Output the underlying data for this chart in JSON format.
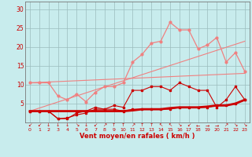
{
  "x": [
    0,
    1,
    2,
    3,
    4,
    5,
    6,
    7,
    8,
    9,
    10,
    11,
    12,
    13,
    14,
    15,
    16,
    17,
    18,
    19,
    20,
    21,
    22,
    23
  ],
  "line_thick_red": [
    3.0,
    3.0,
    3.0,
    3.0,
    3.0,
    3.0,
    3.0,
    3.0,
    3.0,
    3.0,
    3.0,
    3.2,
    3.5,
    3.5,
    3.5,
    3.8,
    4.0,
    4.0,
    4.0,
    4.2,
    4.5,
    4.5,
    5.0,
    6.0
  ],
  "line_vent_moyen": [
    3.0,
    3.0,
    3.0,
    1.0,
    1.2,
    2.0,
    2.5,
    3.5,
    3.5,
    3.5,
    3.0,
    3.5,
    3.5,
    3.5,
    3.5,
    3.5,
    4.0,
    4.0,
    4.0,
    4.0,
    4.5,
    4.5,
    5.0,
    6.0
  ],
  "line_rafales_dark": [
    3.0,
    3.0,
    3.0,
    1.0,
    1.0,
    2.5,
    3.0,
    4.0,
    3.5,
    4.5,
    4.0,
    8.5,
    8.5,
    9.5,
    9.5,
    8.5,
    10.5,
    9.5,
    8.5,
    8.5,
    4.0,
    6.0,
    9.5,
    6.0
  ],
  "line_rafales_light": [
    10.5,
    10.5,
    10.5,
    7.0,
    6.0,
    7.5,
    5.5,
    8.0,
    9.5,
    9.5,
    10.5,
    16.0,
    18.0,
    21.0,
    21.5,
    26.5,
    24.5,
    24.5,
    19.5,
    20.5,
    22.5,
    16.0,
    18.5,
    13.5
  ],
  "line_diag1": {
    "x0": 0,
    "y0": 3.0,
    "x1": 23,
    "y1": 21.5
  },
  "line_diag2": {
    "x0": 0,
    "y0": 10.5,
    "x1": 23,
    "y1": 13.0
  },
  "wind_symbols": [
    "↙",
    "↙",
    "↓",
    "↓",
    "↓",
    "↘",
    "↓",
    "↙",
    "↗",
    "↑",
    "↑",
    "↗",
    "↑",
    "↑",
    "↖",
    "↖",
    "↘",
    "↙",
    "←",
    "→",
    "→",
    "↗",
    "↘",
    "↘"
  ],
  "bg_color": "#c8eced",
  "grid_color": "#9bbcbd",
  "dark_red": "#cc0000",
  "light_pink": "#f08080",
  "xlabel": "Vent moyen/en rafales ( km/h )",
  "ylim": [
    0,
    32
  ],
  "xlim": [
    -0.5,
    23.5
  ],
  "yticks": [
    0,
    5,
    10,
    15,
    20,
    25,
    30
  ],
  "xticks": [
    0,
    1,
    2,
    3,
    4,
    5,
    6,
    7,
    8,
    9,
    10,
    11,
    12,
    13,
    14,
    15,
    16,
    17,
    18,
    19,
    20,
    21,
    22,
    23
  ]
}
